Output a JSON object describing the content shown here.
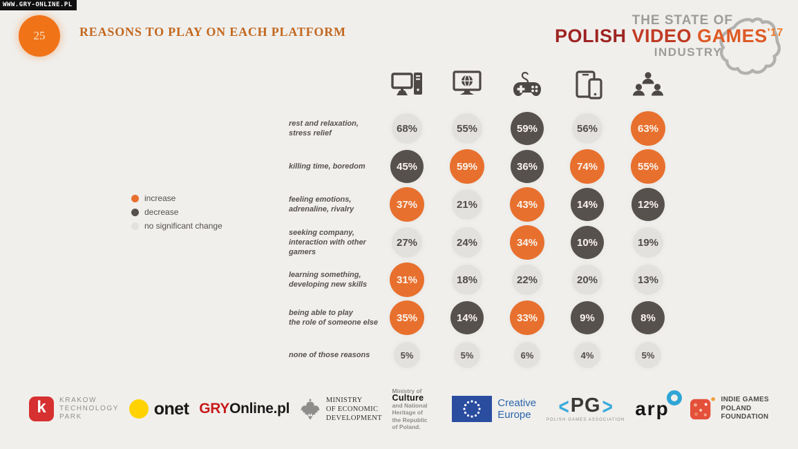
{
  "watermark": "WWW.GRY-ONLINE.PL",
  "header": {
    "page_number": "25",
    "title": "REASONS TO PLAY ON EACH PLATFORM"
  },
  "brand": {
    "line1": "THE STATE OF",
    "word1": "POLISH",
    "word2": "VIDEO",
    "word3": "GAMES",
    "year": "'17",
    "line3": "INDUSTRY"
  },
  "legend": {
    "items": [
      {
        "label": "increase",
        "color": "#e8702e"
      },
      {
        "label": "decrease",
        "color": "#57514e"
      },
      {
        "label": "no significant change",
        "color": "#e3e1de"
      }
    ]
  },
  "chart_data": {
    "type": "table",
    "title": "REASONS TO PLAY ON EACH PLATFORM",
    "legend_position": "left",
    "columns": [
      {
        "icon": "desktop-pc-icon"
      },
      {
        "icon": "browser-games-icon"
      },
      {
        "icon": "gamepad-console-icon"
      },
      {
        "icon": "mobile-devices-icon"
      },
      {
        "icon": "social-games-icon"
      }
    ],
    "status_colors": {
      "increase": "#e8702e",
      "decrease": "#57514e",
      "none": "#e3e1de"
    },
    "rows": [
      {
        "label_lines": [
          "rest and relaxation,",
          "stress relief"
        ],
        "values": [
          68,
          55,
          59,
          56,
          63
        ],
        "status": [
          "none",
          "none",
          "decrease",
          "none",
          "increase"
        ]
      },
      {
        "label_lines": [
          "killing time, boredom"
        ],
        "values": [
          45,
          59,
          36,
          74,
          55
        ],
        "status": [
          "decrease",
          "increase",
          "decrease",
          "increase",
          "increase"
        ]
      },
      {
        "label_lines": [
          "feeling emotions,",
          "adrenaline, rivalry"
        ],
        "values": [
          37,
          21,
          43,
          14,
          12
        ],
        "status": [
          "increase",
          "none",
          "increase",
          "decrease",
          "decrease"
        ]
      },
      {
        "label_lines": [
          "seeking company,",
          "interaction with other gamers"
        ],
        "values": [
          27,
          24,
          34,
          10,
          19
        ],
        "status": [
          "none",
          "none",
          "increase",
          "decrease",
          "none"
        ]
      },
      {
        "label_lines": [
          "learning something,",
          "developing new skills"
        ],
        "values": [
          31,
          18,
          22,
          20,
          13
        ],
        "status": [
          "increase",
          "none",
          "none",
          "none",
          "none"
        ]
      },
      {
        "label_lines": [
          "being able to play",
          "the role of someone else"
        ],
        "values": [
          35,
          14,
          33,
          9,
          8
        ],
        "status": [
          "increase",
          "decrease",
          "increase",
          "decrease",
          "decrease"
        ]
      },
      {
        "label_lines": [
          "none of those reasons"
        ],
        "values": [
          5,
          5,
          6,
          4,
          5
        ],
        "status": [
          "none",
          "none",
          "none",
          "none",
          "none"
        ],
        "small": true
      }
    ]
  },
  "footer": {
    "logos": {
      "ktp": {
        "mark": "k",
        "line1": "KRAKOW",
        "line2": "TECHNOLOGY",
        "line3": "PARK"
      },
      "onet": {
        "text": "onet"
      },
      "gryonline": {
        "red": "GRY",
        "black": "Online.pl"
      },
      "med": {
        "line1": "MINISTRY",
        "line2": "OF ECONOMIC",
        "line3": "DEVELOPMENT"
      },
      "mkidn": {
        "line1": "Ministry of",
        "line2": "Culture",
        "line3": "and National",
        "line4": "Heritage of",
        "line5": "the Republic",
        "line6": "of Poland."
      },
      "creative_europe": {
        "line1": "Creative",
        "line2": "Europe"
      },
      "pg": {
        "lb": "<",
        "text": "PG",
        "rb": ">",
        "sub": "POLISH GAMES ASSOCIATION"
      },
      "arp": {
        "text": "arp"
      },
      "igp": {
        "line1": "INDIE GAMES",
        "line2": "POLAND",
        "line3": "FOUNDATION"
      }
    }
  }
}
